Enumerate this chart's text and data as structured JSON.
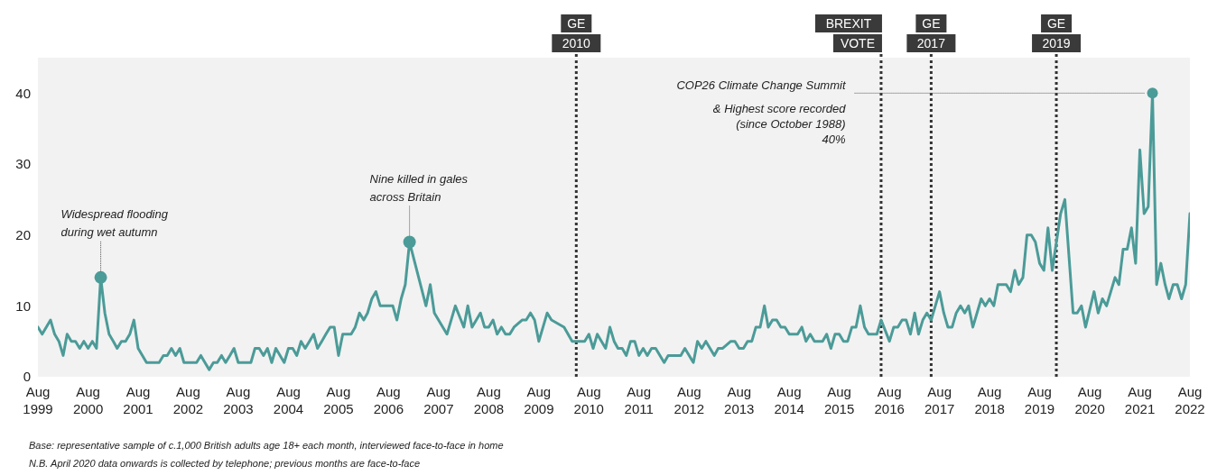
{
  "chart_data": {
    "type": "line",
    "x": [
      "1999-08",
      "1999-09",
      "1999-10",
      "1999-11",
      "1999-12",
      "2000-01",
      "2000-02",
      "2000-03",
      "2000-04",
      "2000-05",
      "2000-06",
      "2000-07",
      "2000-08",
      "2000-09",
      "2000-10",
      "2000-11",
      "2000-12",
      "2001-01",
      "2001-02",
      "2001-03",
      "2001-04",
      "2001-05",
      "2001-06",
      "2001-07",
      "2001-08",
      "2001-09",
      "2001-10",
      "2001-12",
      "2002-01",
      "2002-02",
      "2002-03",
      "2002-04",
      "2002-05",
      "2002-06",
      "2002-07",
      "2002-10",
      "2002-11",
      "2002-12",
      "2003-01",
      "2003-02",
      "2003-03",
      "2003-04",
      "2003-05",
      "2003-06",
      "2003-07",
      "2003-08",
      "2003-11",
      "2003-12",
      "2004-01",
      "2004-02",
      "2004-03",
      "2004-04",
      "2004-05",
      "2004-06",
      "2004-07",
      "2004-08",
      "2004-09",
      "2004-10",
      "2004-11",
      "2004-12",
      "2005-01",
      "2005-02",
      "2005-03",
      "2005-04",
      "2005-05",
      "2005-06",
      "2005-07",
      "2005-08",
      "2005-09",
      "2005-11",
      "2005-12",
      "2006-01",
      "2006-02",
      "2006-03",
      "2006-04",
      "2006-05",
      "2006-06",
      "2006-08",
      "2006-09",
      "2006-10",
      "2006-11",
      "2006-12",
      "2007-01",
      "2007-05",
      "2007-06",
      "2007-07",
      "2007-10",
      "2007-12",
      "2008-02",
      "2008-03",
      "2008-04",
      "2008-06",
      "2008-07",
      "2008-08",
      "2008-09",
      "2008-10",
      "2008-11",
      "2008-12",
      "2009-01",
      "2009-02",
      "2009-04",
      "2009-05",
      "2009-06",
      "2009-07",
      "2009-08",
      "2009-10",
      "2009-11",
      "2010-02",
      "2010-04",
      "2010-07",
      "2010-08",
      "2010-09",
      "2010-10",
      "2010-12",
      "2011-01",
      "2011-02",
      "2011-03",
      "2011-04",
      "2011-05",
      "2011-06",
      "2011-07",
      "2011-08",
      "2011-09",
      "2011-10",
      "2011-11",
      "2011-12",
      "2012-02",
      "2012-03",
      "2012-06",
      "2012-07",
      "2012-09",
      "2012-10",
      "2012-11",
      "2012-12",
      "2013-02",
      "2013-03",
      "2013-04",
      "2013-06",
      "2013-07",
      "2013-08",
      "2013-09",
      "2013-10",
      "2013-11",
      "2013-12",
      "2014-01",
      "2014-02",
      "2014-03",
      "2014-04",
      "2014-05",
      "2014-06",
      "2014-07",
      "2014-08",
      "2014-10",
      "2014-11",
      "2014-12",
      "2015-01",
      "2015-02",
      "2015-04",
      "2015-05",
      "2015-06",
      "2015-07",
      "2015-08",
      "2015-09",
      "2015-10",
      "2015-11",
      "2015-12",
      "2016-01",
      "2016-02",
      "2016-03",
      "2016-05",
      "2016-06",
      "2016-08",
      "2016-09",
      "2016-10",
      "2016-11",
      "2016-12",
      "2017-01",
      "2017-02",
      "2017-03",
      "2017-04",
      "2017-05",
      "2017-06",
      "2017-08",
      "2017-09",
      "2017-10",
      "2017-11",
      "2017-12",
      "2018-01",
      "2018-02",
      "2018-03",
      "2018-04",
      "2018-06",
      "2018-07",
      "2018-08",
      "2018-09",
      "2018-10",
      "2018-12",
      "2019-01",
      "2019-02",
      "2019-03",
      "2019-04",
      "2019-05",
      "2019-06",
      "2019-07",
      "2019-08",
      "2019-09",
      "2019-10",
      "2019-11",
      "2020-01",
      "2020-02",
      "2020-04",
      "2020-05",
      "2020-06",
      "2020-07",
      "2020-09",
      "2020-10",
      "2020-11",
      "2020-12",
      "2021-02",
      "2021-03",
      "2021-04",
      "2021-05",
      "2021-06",
      "2021-07",
      "2021-08",
      "2021-09",
      "2021-10",
      "2021-11",
      "2021-12",
      "2022-01",
      "2022-02",
      "2022-03",
      "2022-04",
      "2022-05",
      "2022-06",
      "2022-07",
      "2022-08"
    ],
    "series": [
      {
        "color": "#4b9b98",
        "values": [
          7,
          6,
          7,
          8,
          6,
          5,
          3,
          6,
          5,
          5,
          4,
          5,
          4,
          5,
          4,
          14,
          9,
          6,
          5,
          4,
          5,
          5,
          6,
          8,
          4,
          3,
          2,
          2,
          2,
          3,
          3,
          4,
          3,
          4,
          2,
          2,
          3,
          2,
          1,
          2,
          2,
          3,
          2,
          3,
          4,
          2,
          2,
          4,
          4,
          3,
          4,
          2,
          4,
          3,
          2,
          4,
          4,
          3,
          5,
          4,
          5,
          6,
          4,
          5,
          6,
          7,
          7,
          3,
          6,
          6,
          7,
          9,
          8,
          9,
          11,
          12,
          10,
          10,
          10,
          8,
          11,
          13,
          19,
          10,
          13,
          9,
          6,
          10,
          7,
          10,
          7,
          9,
          7,
          7,
          8,
          6,
          7,
          6,
          6,
          7,
          8,
          8,
          9,
          8,
          5,
          9,
          8,
          7,
          5,
          5,
          6,
          4,
          6,
          4,
          7,
          5,
          4,
          4,
          3,
          5,
          5,
          3,
          4,
          3,
          4,
          4,
          2,
          3,
          3,
          4,
          2,
          5,
          4,
          5,
          3,
          4,
          4,
          5,
          5,
          4,
          4,
          5,
          5,
          7,
          7,
          10,
          7,
          8,
          8,
          7,
          7,
          6,
          6,
          7,
          5,
          6,
          5,
          5,
          6,
          4,
          6,
          6,
          5,
          5,
          7,
          7,
          10,
          7,
          6,
          6,
          8,
          5,
          7,
          7,
          8,
          8,
          6,
          9,
          6,
          8,
          9,
          8,
          12,
          9,
          7,
          7,
          9,
          10,
          9,
          10,
          7,
          11,
          10,
          11,
          10,
          13,
          13,
          12,
          15,
          13,
          14,
          20,
          20,
          19,
          16,
          15,
          21,
          15,
          23,
          25,
          9,
          9,
          10,
          7,
          12,
          9,
          11,
          10,
          14,
          13,
          18,
          18,
          21,
          16,
          32,
          23,
          24,
          40,
          13,
          16,
          13,
          11,
          13,
          13,
          11,
          13,
          23
        ]
      }
    ],
    "xlim": [
      "1999-08",
      "2022-08"
    ],
    "xticks": [
      {
        "value": "1999-08",
        "label": "Aug 1999"
      },
      {
        "value": "2000-08",
        "label": "Aug 2000"
      },
      {
        "value": "2001-08",
        "label": "Aug 2001"
      },
      {
        "value": "2002-08",
        "label": "Aug 2002"
      },
      {
        "value": "2003-08",
        "label": "Aug 2003"
      },
      {
        "value": "2004-08",
        "label": "Aug 2004"
      },
      {
        "value": "2005-08",
        "label": "Aug 2005"
      },
      {
        "value": "2006-08",
        "label": "Aug 2006"
      },
      {
        "value": "2007-08",
        "label": "Aug 2007"
      },
      {
        "value": "2008-08",
        "label": "Aug 2008"
      },
      {
        "value": "2009-08",
        "label": "Aug 2009"
      },
      {
        "value": "2010-08",
        "label": "Aug 2010"
      },
      {
        "value": "2011-08",
        "label": "Aug 2011"
      },
      {
        "value": "2012-08",
        "label": "Aug 2012"
      },
      {
        "value": "2013-08",
        "label": "Aug 2013"
      },
      {
        "value": "2014-08",
        "label": "Aug 2014"
      },
      {
        "value": "2015-08",
        "label": "Aug 2015"
      },
      {
        "value": "2016-08",
        "label": "Aug 2016"
      },
      {
        "value": "2017-08",
        "label": "Aug 2017"
      },
      {
        "value": "2018-08",
        "label": "Aug 2018"
      },
      {
        "value": "2019-08",
        "label": "Aug 2019"
      },
      {
        "value": "2020-08",
        "label": "Aug 2020"
      },
      {
        "value": "2021-08",
        "label": "Aug 2021"
      },
      {
        "value": "2022-08",
        "label": "Aug 2022"
      }
    ],
    "ylim": [
      0,
      45
    ],
    "yticks": [
      0,
      10,
      20,
      30,
      40
    ],
    "ref_lines": [
      {
        "axis": "x",
        "value": "2010-05",
        "label": "GE 2010",
        "color": "#333333",
        "line_style": "dotted"
      },
      {
        "axis": "x",
        "value": "2016-06",
        "label": "BREXIT VOTE",
        "color": "#333333",
        "line_style": "dotted"
      },
      {
        "axis": "x",
        "value": "2017-06",
        "label": "GE 2017",
        "color": "#333333",
        "line_style": "dotted"
      },
      {
        "axis": "x",
        "value": "2019-12",
        "label": "GE 2019",
        "color": "#333333",
        "line_style": "dotted"
      }
    ],
    "annotations": [
      {
        "text": "Widespread flooding\nduring wet autumn",
        "x": "2000-11",
        "y": 14
      },
      {
        "text": "Nine killed in gales\nacross Britain",
        "x": "2007-01",
        "y": 19
      },
      {
        "text": "COP26 Climate Change Summit\n& Highest score recorded\n(since October 1988)\n40%",
        "x": "2021-11",
        "y": 40
      },
      "Base: representative sample of c.1,000 British adults age 18+ each month, interviewed face-to-face in home",
      "N.B. April 2020 data onwards is collected by telephone; previous months are face-to-face"
    ]
  }
}
